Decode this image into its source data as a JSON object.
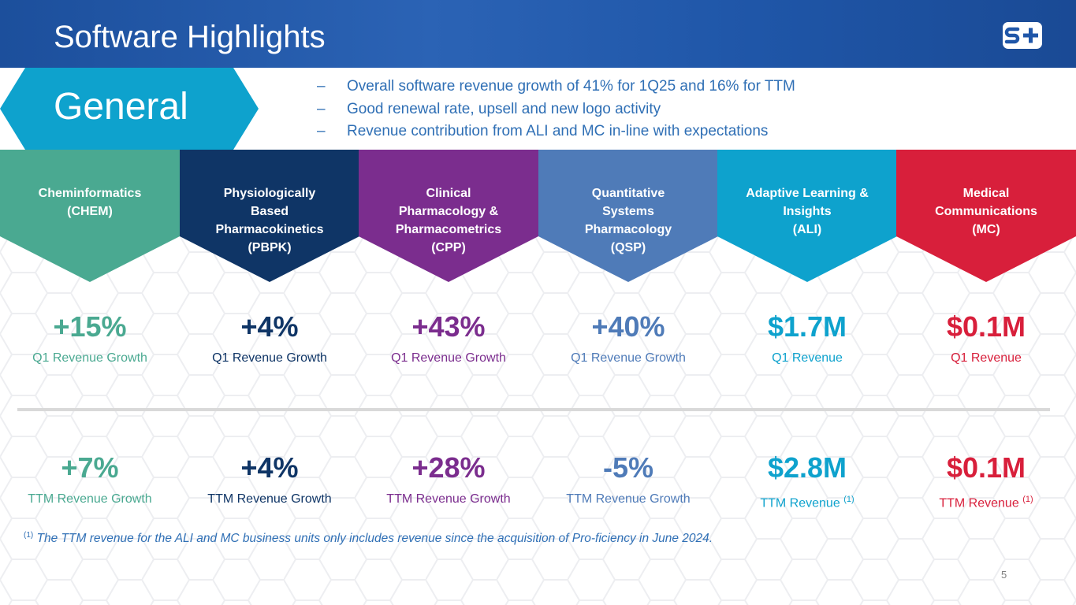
{
  "header": {
    "title": "Software Highlights"
  },
  "general": {
    "label": "General",
    "bullets": [
      "Overall software revenue growth of 41% for 1Q25 and 16% for TTM",
      "Good renewal rate, upsell and new logo activity",
      "Revenue contribution from ALI and MC in-line with expectations"
    ],
    "dash": "–"
  },
  "segments": [
    {
      "name_lines": [
        "Cheminformatics",
        "(CHEM)"
      ],
      "color": "#4aa991",
      "q1_value": "+15%",
      "q1_label": "Q1 Revenue Growth",
      "ttm_value": "+7%",
      "ttm_label": "TTM Revenue Growth",
      "ttm_note": ""
    },
    {
      "name_lines": [
        "Physiologically",
        "Based",
        "Pharmacokinetics",
        "(PBPK)"
      ],
      "color": "#0f3566",
      "q1_value": "+4%",
      "q1_label": "Q1 Revenue Growth",
      "ttm_value": "+4%",
      "ttm_label": "TTM Revenue Growth",
      "ttm_note": ""
    },
    {
      "name_lines": [
        "Clinical",
        "Pharmacology &",
        "Pharmacometrics",
        "(CPP)"
      ],
      "color": "#7b2d8e",
      "q1_value": "+43%",
      "q1_label": "Q1 Revenue Growth",
      "ttm_value": "+28%",
      "ttm_label": "TTM Revenue Growth",
      "ttm_note": ""
    },
    {
      "name_lines": [
        "Quantitative",
        "Systems",
        "Pharmacology",
        "(QSP)"
      ],
      "color": "#4f7bb8",
      "q1_value": "+40%",
      "q1_label": "Q1 Revenue Growth",
      "ttm_value": "-5%",
      "ttm_label": "TTM Revenue Growth",
      "ttm_note": ""
    },
    {
      "name_lines": [
        "Adaptive Learning &",
        "Insights",
        "(ALI)"
      ],
      "color": "#0ea2cd",
      "q1_value": "$1.7M",
      "q1_label": "Q1 Revenue",
      "ttm_value": "$2.8M",
      "ttm_label": "TTM Revenue",
      "ttm_note": "(1)"
    },
    {
      "name_lines": [
        "Medical",
        "Communications",
        "(MC)"
      ],
      "color": "#d81f3b",
      "q1_value": "$0.1M",
      "q1_label": "Q1 Revenue",
      "ttm_value": "$0.1M",
      "ttm_label": "TTM Revenue",
      "ttm_note": "(1)"
    }
  ],
  "footnote": {
    "marker": "(1)",
    "text": "The TTM revenue for the ALI and MC business units only includes revenue since the acquisition of Pro-ficiency in June 2024."
  },
  "page_number": "5",
  "colors": {
    "header_bg": "#1f56a8",
    "general_bg": "#0ea2cd",
    "bullet_text": "#2f6fb5",
    "divider": "#d9d9d9"
  },
  "icons": {
    "logo": "simulations-plus-logo"
  }
}
